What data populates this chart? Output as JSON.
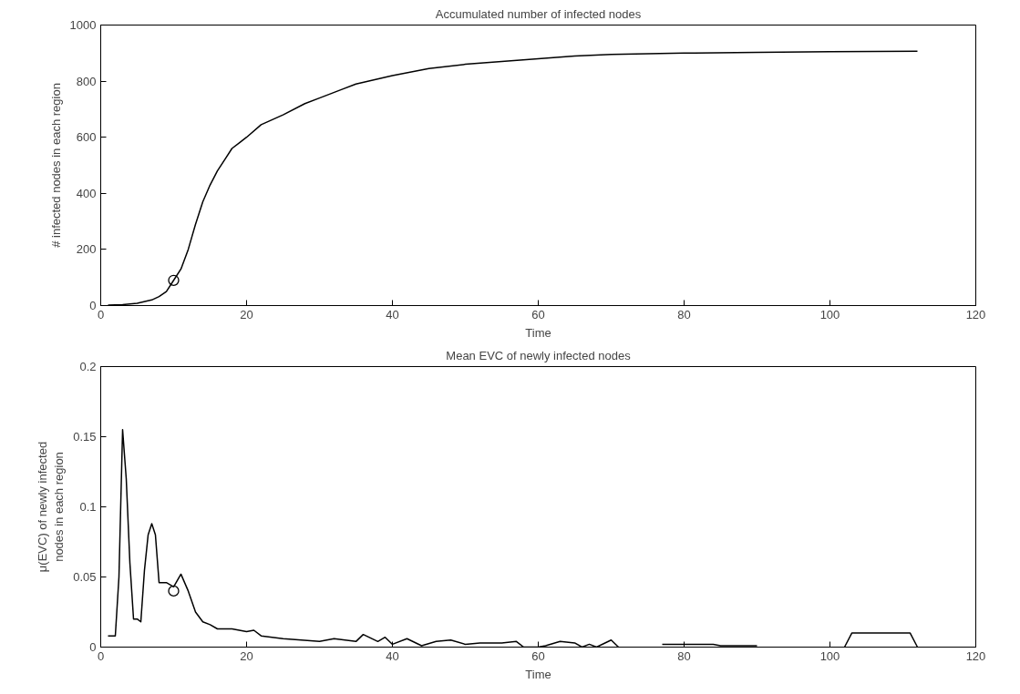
{
  "chart_data": [
    {
      "type": "line",
      "title": "Accumulated number of infected nodes",
      "xlabel": "Time",
      "ylabel": "# infected nodes in each region",
      "xlim": [
        0,
        120
      ],
      "ylim": [
        0,
        1000
      ],
      "xticks": [
        0,
        20,
        40,
        60,
        80,
        100,
        120
      ],
      "yticks": [
        0,
        200,
        400,
        600,
        800,
        1000
      ],
      "grid": false,
      "series": [
        {
          "color": "#000000",
          "x": [
            1,
            3,
            5,
            7,
            8,
            9,
            10,
            11,
            12,
            13,
            14,
            15,
            16,
            17,
            18,
            19,
            20,
            22,
            25,
            28,
            30,
            33,
            35,
            40,
            45,
            50,
            55,
            60,
            65,
            70,
            80,
            90,
            100,
            112
          ],
          "values": [
            2,
            3,
            8,
            20,
            32,
            50,
            90,
            130,
            200,
            290,
            370,
            430,
            480,
            520,
            560,
            580,
            600,
            645,
            680,
            720,
            740,
            770,
            790,
            820,
            845,
            860,
            870,
            880,
            890,
            895,
            900,
            903,
            905,
            907
          ]
        },
        {
          "type": "scatter",
          "marker": "circle",
          "color": "#000000",
          "x": [
            10
          ],
          "values": [
            90
          ]
        }
      ]
    },
    {
      "type": "line",
      "title": "Mean EVC of newly infected nodes",
      "xlabel": "Time",
      "ylabel": "μ(EVC) of newly infected\nnodes in each region",
      "xlim": [
        0,
        120
      ],
      "ylim": [
        0,
        0.2
      ],
      "xticks": [
        0,
        20,
        40,
        60,
        80,
        100,
        120
      ],
      "yticks": [
        0,
        0.05,
        0.1,
        0.15,
        0.2
      ],
      "grid": false,
      "series": [
        {
          "color": "#000000",
          "x": [
            1,
            2,
            2.5,
            3,
            3.5,
            4,
            4.5,
            5,
            5.5,
            6,
            6.5,
            7,
            7.5,
            8,
            9,
            10,
            11,
            12,
            13,
            14,
            15,
            16,
            18,
            20,
            21,
            22,
            25,
            30,
            32,
            35,
            36,
            38,
            39,
            40,
            42,
            44,
            46,
            48,
            50,
            52,
            55,
            57,
            58,
            60,
            61,
            63,
            65,
            66,
            67,
            68,
            70,
            71,
            72,
            77,
            84,
            85,
            90,
            91,
            102,
            103,
            111,
            112
          ],
          "values": [
            0.008,
            0.008,
            0.05,
            0.155,
            0.12,
            0.06,
            0.02,
            0.02,
            0.018,
            0.055,
            0.08,
            0.088,
            0.08,
            0.046,
            0.046,
            0.043,
            0.052,
            0.04,
            0.025,
            0.018,
            0.016,
            0.013,
            0.013,
            0.011,
            0.012,
            0.008,
            0.006,
            0.004,
            0.006,
            0.004,
            0.009,
            0.004,
            0.007,
            0.002,
            0.006,
            0.001,
            0.004,
            0.005,
            0.002,
            0.003,
            0.003,
            0.004,
            0.0,
            0.0,
            0.001,
            0.004,
            0.003,
            0.0,
            0.002,
            0.0,
            0.005,
            0.0,
            null,
            0.002,
            0.002,
            0.001,
            0.001,
            null,
            0.0,
            0.01,
            0.01,
            0.0
          ]
        },
        {
          "type": "scatter",
          "marker": "circle",
          "color": "#000000",
          "x": [
            10
          ],
          "values": [
            0.04
          ]
        }
      ]
    }
  ]
}
